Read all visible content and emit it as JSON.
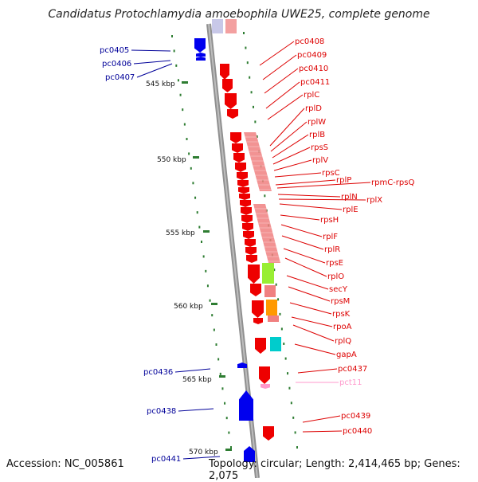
{
  "title": "Candidatus Protochlamydia amoebophila UWE25, complete genome",
  "footer": {
    "accession": "Accession: NC_005861",
    "summary": "Topology: circular; Length: 2,414,465 bp; Genes: 2,075"
  },
  "colors": {
    "backbone": "#909090",
    "ruler": "#2e7d32",
    "left_gene": "#0000ee",
    "right_gene": "#ee0000",
    "pseudo_gene": "#ff99cc",
    "rrna_block": "#f08080",
    "secY_box": "#99ee33",
    "rpoA_box": "#ff9900",
    "gapA_box": "#00cccc"
  },
  "ruler_labels": [
    "545 kbp",
    "550 kbp",
    "555 kbp",
    "560 kbp",
    "565 kbp",
    "570 kbp"
  ],
  "left_labels": [
    "pc0405",
    "pc0406",
    "pc0407",
    "pc0436",
    "pc0438",
    "pc0441"
  ],
  "right_labels": [
    "pc0408",
    "pc0409",
    "pc0410",
    "pc0411",
    "rplC",
    "rplD",
    "rplW",
    "rplB",
    "rpsS",
    "rplV",
    "rpsC",
    "rplP",
    "rpmC-rpsQ",
    "rplN",
    "rplX",
    "rplE",
    "rpsH",
    "rplF",
    "rplR",
    "rpsE",
    "rplO",
    "secY",
    "rpsM",
    "rpsK",
    "rpoA",
    "rplQ",
    "gapA",
    "pc0437",
    "pct11",
    "pc0439",
    "pc0440"
  ]
}
